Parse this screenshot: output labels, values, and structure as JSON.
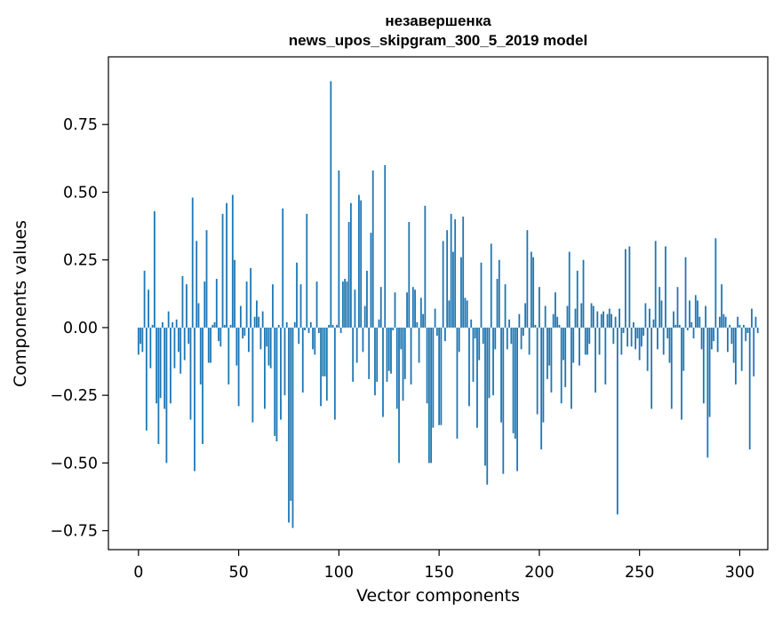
{
  "chart_data": {
    "type": "bar",
    "title_line1": "незавершенка",
    "title_line2": "news_upos_skipgram_300_5_2019 model",
    "xlabel": "Vector components",
    "ylabel": "Components values",
    "xlim": [
      -15,
      314
    ],
    "ylim": [
      -0.82,
      1.0
    ],
    "xticks": [
      {
        "value": 0,
        "label": "0"
      },
      {
        "value": 50,
        "label": "50"
      },
      {
        "value": 100,
        "label": "100"
      },
      {
        "value": 150,
        "label": "150"
      },
      {
        "value": 200,
        "label": "200"
      },
      {
        "value": 250,
        "label": "250"
      },
      {
        "value": 300,
        "label": "300"
      }
    ],
    "yticks": [
      {
        "value": 0.75,
        "label": "0.75"
      },
      {
        "value": 0.5,
        "label": "0.50"
      },
      {
        "value": 0.25,
        "label": "0.25"
      },
      {
        "value": 0.0,
        "label": "0.00"
      },
      {
        "value": -0.25,
        "label": "−0.25"
      },
      {
        "value": -0.5,
        "label": "−0.50"
      },
      {
        "value": -0.75,
        "label": "−0.75"
      }
    ],
    "bar_color": "#1f77b4",
    "grid": false,
    "values": [
      -0.1,
      -0.06,
      -0.09,
      0.21,
      -0.38,
      0.14,
      -0.15,
      0.01,
      0.43,
      -0.28,
      -0.43,
      -0.26,
      0.02,
      -0.3,
      -0.5,
      0.06,
      -0.28,
      0.02,
      -0.15,
      0.03,
      -0.09,
      -0.17,
      0.19,
      -0.12,
      0.16,
      -0.06,
      -0.34,
      0.48,
      -0.53,
      0.32,
      0.09,
      -0.21,
      -0.43,
      0.17,
      0.36,
      -0.13,
      -0.13,
      0.01,
      0.02,
      0.18,
      -0.05,
      -0.07,
      0.42,
      0.01,
      0.46,
      -0.21,
      0.01,
      0.49,
      0.25,
      -0.14,
      -0.29,
      0.08,
      -0.04,
      -0.03,
      0.17,
      -0.09,
      0.22,
      -0.35,
      0.04,
      0.1,
      0.04,
      -0.08,
      0.06,
      -0.3,
      -0.07,
      -0.14,
      -0.15,
      0.16,
      -0.4,
      -0.42,
      0.01,
      -0.34,
      0.44,
      -0.25,
      0.02,
      -0.72,
      -0.64,
      -0.74,
      0.02,
      0.24,
      -0.06,
      0.16,
      -0.24,
      -0.01,
      0.42,
      -0.02,
      0.02,
      -0.08,
      -0.1,
      0.17,
      -0.02,
      -0.29,
      -0.18,
      -0.18,
      -0.27,
      0.01,
      0.91,
      0.01,
      -0.34,
      0.01,
      0.58,
      -0.02,
      0.17,
      0.18,
      0.17,
      0.39,
      0.46,
      -0.2,
      0.14,
      -0.13,
      0.49,
      0.47,
      -0.09,
      0.08,
      0.21,
      -0.19,
      0.35,
      0.58,
      -0.25,
      -0.2,
      0.03,
      0.15,
      -0.33,
      0.6,
      -0.2,
      -0.16,
      -0.17,
      -0.01,
      0.13,
      -0.3,
      -0.5,
      -0.08,
      -0.27,
      -0.19,
      0.13,
      0.39,
      -0.21,
      0.15,
      0.14,
      0.02,
      -0.13,
      0.11,
      0.05,
      0.45,
      -0.28,
      -0.5,
      -0.5,
      -0.37,
      0.07,
      -0.03,
      -0.36,
      -0.36,
      0.32,
      -0.05,
      0.36,
      0.1,
      0.42,
      0.28,
      0.4,
      -0.41,
      -0.09,
      0.26,
      0.41,
      0.11,
      0.1,
      -0.29,
      0.03,
      -0.2,
      -0.04,
      -0.37,
      -0.12,
      0.24,
      -0.06,
      -0.51,
      -0.58,
      -0.26,
      0.31,
      -0.25,
      -0.08,
      0.18,
      0.25,
      -0.35,
      -0.54,
      0.16,
      -0.08,
      0.03,
      -0.06,
      -0.39,
      -0.41,
      -0.53,
      0.05,
      -0.08,
      -0.03,
      0.09,
      0.36,
      -0.1,
      0.28,
      0.26,
      0.01,
      -0.32,
      0.15,
      -0.45,
      -0.35,
      0.08,
      -0.19,
      -0.14,
      -0.24,
      0.05,
      0.13,
      0.04,
      0.01,
      -0.28,
      -0.12,
      -0.22,
      0.08,
      0.28,
      -0.3,
      -0.13,
      0.07,
      0.21,
      -0.14,
      0.09,
      0.25,
      -0.1,
      -0.1,
      -0.06,
      0.09,
      0.08,
      -0.24,
      0.06,
      -0.1,
      0.05,
      0.06,
      -0.21,
      0.05,
      0.07,
      0.05,
      -0.06,
      0.04,
      -0.69,
      0.07,
      -0.1,
      -0.02,
      0.29,
      -0.07,
      0.3,
      -0.07,
      0.02,
      -0.08,
      -0.04,
      -0.12,
      -0.07,
      -0.03,
      0.09,
      -0.16,
      0.07,
      -0.3,
      0.03,
      0.32,
      -0.08,
      0.15,
      0.1,
      -0.1,
      0.3,
      -0.04,
      -0.13,
      -0.3,
      0.06,
      0.01,
      0.15,
      0.01,
      -0.34,
      -0.16,
      0.26,
      -0.01,
      0.1,
      0.02,
      -0.04,
      0.12,
      0.1,
      0.04,
      -0.08,
      -0.28,
      0.08,
      -0.48,
      -0.33,
      -0.08,
      -0.05,
      0.33,
      -0.09,
      0.04,
      0.16,
      0.05,
      0.04,
      -0.09,
      0.01,
      -0.06,
      -0.13,
      -0.21,
      0.04,
      0.01,
      -0.16,
      0.01,
      -0.05,
      -0.02,
      -0.45,
      0.07,
      -0.18,
      0.04,
      -0.02
    ]
  }
}
